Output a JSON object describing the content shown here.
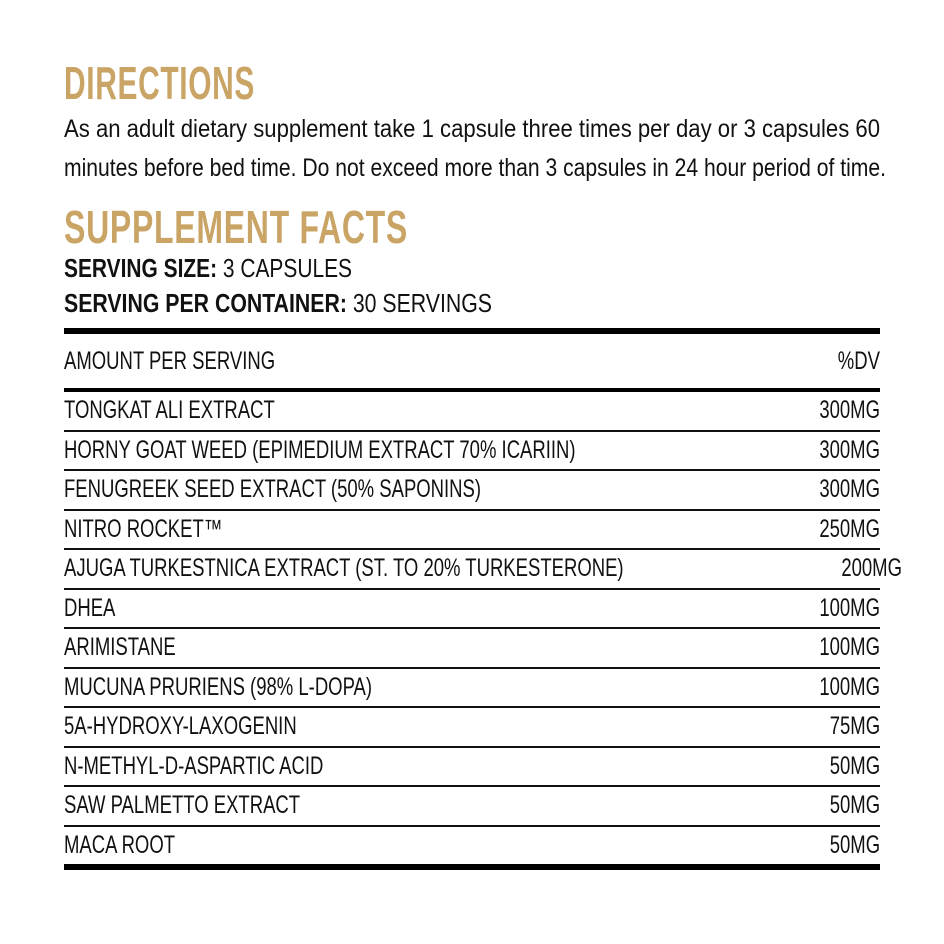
{
  "directions": {
    "heading": "DIRECTIONS",
    "lines": [
      "As an adult dietary supplement take 1 capsule three times per day or 3 capsules 60",
      "minutes before bed time. Do not exceed more than 3 capsules in 24 hour period of time."
    ]
  },
  "supplement_facts": {
    "heading": "SUPPLEMENT FACTS",
    "serving_size_label": "SERVING SIZE:",
    "serving_size_value": " 3 CAPSULES",
    "servings_label": "SERVING PER CONTAINER:",
    "servings_value": " 30 SERVINGS",
    "header": {
      "left": "AMOUNT PER SERVING",
      "right": "%DV"
    },
    "rows": [
      {
        "name": "TONGKAT ALI EXTRACT",
        "amount": "300MG"
      },
      {
        "name": "HORNY GOAT WEED (EPIMEDIUM EXTRACT 70% ICARIIN)",
        "amount": "300MG"
      },
      {
        "name": "FENUGREEK SEED EXTRACT (50% SAPONINS)",
        "amount": "300MG"
      },
      {
        "name": "NITRO ROCKET™",
        "amount": "250MG"
      },
      {
        "name": "AJUGA TURKESTNICA EXTRACT (ST. TO 20% TURKESTERONE)",
        "amount": "200MG"
      },
      {
        "name": "DHEA",
        "amount": "100MG"
      },
      {
        "name": "ARIMISTANE",
        "amount": "100MG"
      },
      {
        "name": "MUCUNA PRURIENS (98% L-DOPA)",
        "amount": "100MG"
      },
      {
        "name": "5A-HYDROXY-LAXOGENIN",
        "amount": "75MG"
      },
      {
        "name": "N-METHYL-D-ASPARTIC ACID",
        "amount": "50MG"
      },
      {
        "name": "SAW PALMETTO EXTRACT",
        "amount": "50MG"
      },
      {
        "name": "MACA ROOT",
        "amount": "50MG"
      }
    ]
  },
  "colors": {
    "heading": "#c9a465",
    "text": "#111111"
  }
}
